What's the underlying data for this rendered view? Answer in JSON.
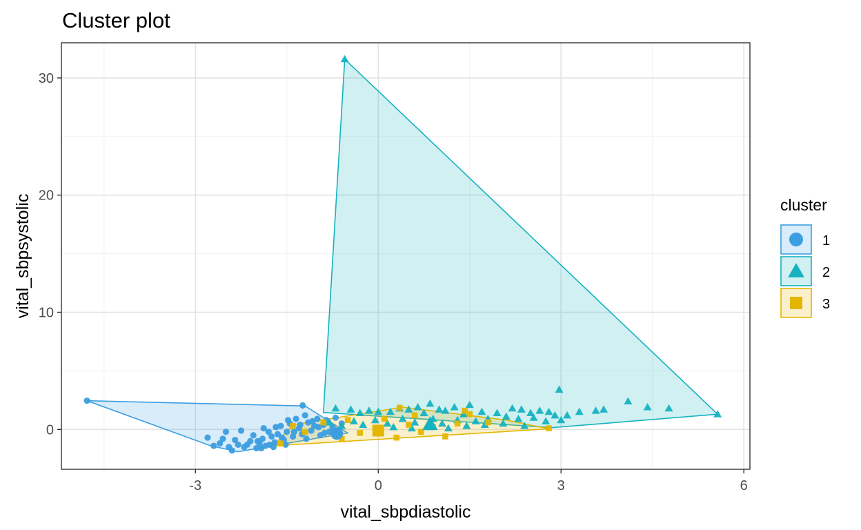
{
  "chart_data": {
    "type": "scatter",
    "title": "Cluster plot",
    "xlabel": "vital_sbpdiastolic",
    "ylabel": "vital_sbpsystolic",
    "xlim": [
      -5.2,
      6.1
    ],
    "ylim": [
      -3.4,
      33.0
    ],
    "x_ticks": [
      -3,
      0,
      3,
      6
    ],
    "x_tick_labels": [
      "-3",
      "0",
      "3",
      "6"
    ],
    "y_ticks": [
      0,
      10,
      20,
      30
    ],
    "y_tick_labels": [
      "0",
      "10",
      "20",
      "30"
    ],
    "grid": true,
    "legend_title": "cluster",
    "legend_position": "right",
    "series": [
      {
        "name": "1",
        "marker": "circle",
        "color": "#3c9ee0",
        "hull": [
          [
            -4.78,
            2.45
          ],
          [
            -1.2,
            2.0
          ],
          [
            -0.5,
            -0.3
          ],
          [
            -2.3,
            -1.9
          ],
          [
            -2.75,
            -1.4
          ]
        ],
        "center": [
          -0.68,
          -0.35
        ],
        "points": [
          [
            -4.78,
            2.45
          ],
          [
            -1.24,
            2.05
          ],
          [
            -2.8,
            -0.7
          ],
          [
            -2.7,
            -1.4
          ],
          [
            -2.6,
            -1.2
          ],
          [
            -2.4,
            -1.8
          ],
          [
            -2.3,
            -1.3
          ],
          [
            -2.2,
            -1.5
          ],
          [
            -2.1,
            -1.0
          ],
          [
            -2.0,
            -1.6
          ],
          [
            -1.95,
            -1.2
          ],
          [
            -1.9,
            -0.8
          ],
          [
            -1.85,
            -1.4
          ],
          [
            -1.8,
            -0.2
          ],
          [
            -1.75,
            -0.6
          ],
          [
            -1.7,
            -1.1
          ],
          [
            -1.65,
            -0.4
          ],
          [
            -1.6,
            0.3
          ],
          [
            -1.55,
            -0.9
          ],
          [
            -1.5,
            -0.2
          ],
          [
            -1.45,
            0.5
          ],
          [
            -1.4,
            -0.6
          ],
          [
            -1.35,
            0.9
          ],
          [
            -1.3,
            0.1
          ],
          [
            -1.25,
            -0.4
          ],
          [
            -1.2,
            1.2
          ],
          [
            -1.15,
            0.6
          ],
          [
            -1.1,
            -0.1
          ],
          [
            -1.05,
            0.3
          ],
          [
            -1.0,
            0.9
          ],
          [
            -0.95,
            -0.5
          ],
          [
            -0.9,
            0.4
          ],
          [
            -0.85,
            0.8
          ],
          [
            -0.8,
            -0.2
          ],
          [
            -0.75,
            0.2
          ],
          [
            -0.7,
            1.0
          ],
          [
            -0.65,
            -0.3
          ],
          [
            -0.6,
            0.5
          ],
          [
            -2.5,
            -0.2
          ],
          [
            -2.35,
            -0.9
          ],
          [
            -2.25,
            -0.1
          ],
          [
            -2.15,
            -1.3
          ],
          [
            -2.05,
            -0.5
          ],
          [
            -1.98,
            -1.0
          ],
          [
            -1.88,
            0.1
          ],
          [
            -1.78,
            -1.3
          ],
          [
            -1.68,
            0.2
          ],
          [
            -1.58,
            -0.7
          ],
          [
            -1.48,
            0.8
          ],
          [
            -1.38,
            -0.2
          ],
          [
            -1.28,
            0.4
          ],
          [
            -1.18,
            -0.8
          ],
          [
            -1.08,
            0.7
          ],
          [
            -0.98,
            0.2
          ],
          [
            -0.88,
            -0.3
          ],
          [
            -2.45,
            -1.5
          ],
          [
            -2.55,
            -0.8
          ],
          [
            -1.92,
            -1.6
          ],
          [
            -1.72,
            -1.5
          ],
          [
            -1.52,
            -1.3
          ]
        ]
      },
      {
        "name": "2",
        "marker": "triangle",
        "color": "#16b2c0",
        "hull": [
          [
            -0.55,
            31.6
          ],
          [
            5.57,
            1.3
          ],
          [
            2.85,
            0.15
          ],
          [
            -0.9,
            1.45
          ]
        ],
        "center": [
          0.85,
          0.45
        ],
        "points": [
          [
            -0.55,
            31.6
          ],
          [
            5.57,
            1.3
          ],
          [
            2.97,
            3.4
          ],
          [
            4.1,
            2.4
          ],
          [
            4.42,
            1.9
          ],
          [
            4.77,
            1.8
          ],
          [
            3.7,
            1.7
          ],
          [
            3.57,
            1.6
          ],
          [
            3.3,
            1.5
          ],
          [
            2.8,
            1.5
          ],
          [
            2.65,
            1.6
          ],
          [
            2.5,
            1.4
          ],
          [
            2.35,
            1.7
          ],
          [
            2.2,
            1.8
          ],
          [
            1.5,
            2.1
          ],
          [
            1.25,
            1.9
          ],
          [
            1.0,
            1.7
          ],
          [
            0.85,
            2.2
          ],
          [
            0.65,
            1.9
          ],
          [
            0.35,
            1.8
          ],
          [
            0.0,
            1.5
          ],
          [
            -0.3,
            1.4
          ],
          [
            -0.7,
            1.8
          ],
          [
            -0.45,
            1.7
          ],
          [
            -0.15,
            1.6
          ],
          [
            0.2,
            1.5
          ],
          [
            0.5,
            1.7
          ],
          [
            0.75,
            1.4
          ],
          [
            1.1,
            1.6
          ],
          [
            1.4,
            1.3
          ],
          [
            1.7,
            1.5
          ],
          [
            1.95,
            1.4
          ],
          [
            2.1,
            1.1
          ],
          [
            2.3,
            0.9
          ],
          [
            2.55,
            1.0
          ],
          [
            2.75,
            0.7
          ],
          [
            3.0,
            0.8
          ],
          [
            2.9,
            1.2
          ],
          [
            3.1,
            1.2
          ],
          [
            1.8,
            0.9
          ],
          [
            1.6,
            0.7
          ],
          [
            1.3,
            0.8
          ],
          [
            1.05,
            0.5
          ],
          [
            0.9,
            0.9
          ],
          [
            0.6,
            0.6
          ],
          [
            0.4,
            0.9
          ],
          [
            0.15,
            0.5
          ],
          [
            -0.05,
            0.8
          ],
          [
            -0.25,
            0.4
          ],
          [
            -0.4,
            0.7
          ],
          [
            -0.6,
            0.3
          ],
          [
            -0.8,
            0.6
          ],
          [
            0.25,
            0.2
          ],
          [
            0.55,
            0.1
          ],
          [
            0.85,
            0.2
          ],
          [
            1.15,
            0.1
          ],
          [
            1.45,
            0.3
          ],
          [
            1.75,
            0.4
          ],
          [
            2.05,
            0.5
          ],
          [
            2.4,
            0.3
          ]
        ]
      },
      {
        "name": "3",
        "marker": "square",
        "color": "#e4b600",
        "hull": [
          [
            -1.72,
            -1.4
          ],
          [
            2.8,
            0.05
          ],
          [
            2.1,
            0.8
          ],
          [
            0.4,
            1.9
          ],
          [
            -1.4,
            0.4
          ]
        ],
        "center": [
          0.0,
          -0.1
        ],
        "points": [
          [
            -1.4,
            0.3
          ],
          [
            -1.6,
            -1.2
          ],
          [
            -0.6,
            -0.8
          ],
          [
            -0.3,
            -0.3
          ],
          [
            0.3,
            -0.7
          ],
          [
            0.35,
            1.85
          ],
          [
            1.42,
            1.6
          ],
          [
            1.5,
            1.3
          ],
          [
            2.8,
            0.1
          ],
          [
            1.1,
            -0.6
          ],
          [
            0.9,
            0.2
          ],
          [
            0.7,
            -0.2
          ],
          [
            0.5,
            0.4
          ],
          [
            -0.9,
            0.6
          ],
          [
            -1.2,
            -0.2
          ],
          [
            0.1,
            0.9
          ],
          [
            1.3,
            0.5
          ],
          [
            1.8,
            0.6
          ],
          [
            0.6,
            1.2
          ],
          [
            -0.5,
            0.8
          ]
        ]
      }
    ]
  }
}
